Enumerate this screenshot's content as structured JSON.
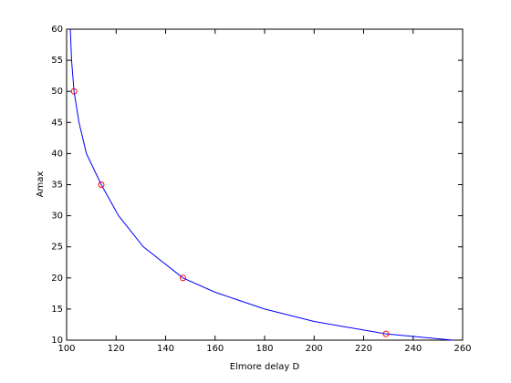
{
  "chart_data": {
    "type": "line",
    "xlabel": "Elmore delay D",
    "ylabel": "Amax",
    "xlim": [
      100,
      260
    ],
    "xticks": [
      100,
      120,
      140,
      160,
      180,
      200,
      220,
      240,
      260
    ],
    "ylim": [
      10,
      60
    ],
    "yticks": [
      10,
      15,
      20,
      25,
      30,
      35,
      40,
      45,
      50,
      55,
      60
    ],
    "grid": false,
    "series": [
      {
        "color": "#0000ff",
        "marker": "none",
        "x": [
          101.5,
          102,
          103,
          105,
          108,
          114,
          121,
          131,
          147,
          160,
          180,
          200,
          229,
          256
        ],
        "values": [
          60,
          55,
          50,
          45,
          40,
          35,
          30,
          25,
          20,
          17.7,
          15,
          13,
          11,
          10
        ]
      },
      {
        "color": "#ff0000",
        "marker": "circle",
        "x": [
          103,
          114,
          147,
          229
        ],
        "values": [
          50,
          35,
          20,
          11
        ]
      }
    ]
  }
}
